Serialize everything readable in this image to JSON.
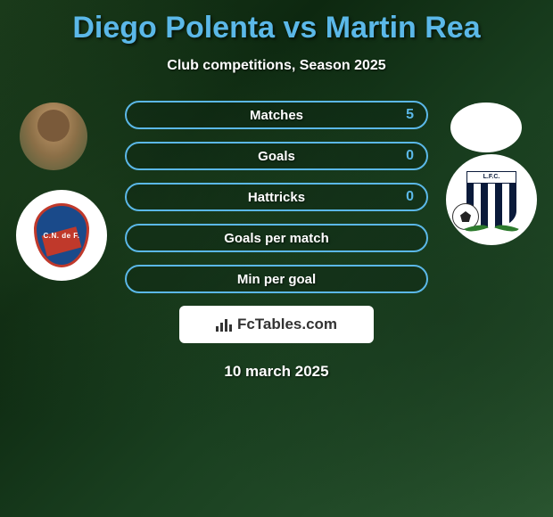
{
  "title": "Diego Polenta vs Martin Rea",
  "subtitle": "Club competitions, Season 2025",
  "date": "10 march 2025",
  "fctables_label": "FcTables.com",
  "club_left_text": "C.N. de F.",
  "club_right_text": "L.F.C.",
  "stats": [
    {
      "label": "Matches",
      "value_right": "5"
    },
    {
      "label": "Goals",
      "value_right": "0"
    },
    {
      "label": "Hattricks",
      "value_right": "0"
    },
    {
      "label": "Goals per match",
      "value_right": ""
    },
    {
      "label": "Min per goal",
      "value_right": ""
    }
  ],
  "styling": {
    "title_color": "#5bb8e8",
    "text_color": "#ffffff",
    "value_color": "#5bb8e8",
    "pill_border_color": "#5bb8e8",
    "background_base": "#1a3a1a",
    "fctables_bg": "#ffffff",
    "fctables_text_color": "#333333",
    "title_fontsize": 34,
    "subtitle_fontsize": 16,
    "stat_label_fontsize": 15,
    "stat_row_height": 32,
    "stat_row_gap": 14,
    "pill_border_radius": 16,
    "pill_width": 340,
    "avatar_diameter": 76,
    "badge_diameter": 102,
    "club_left_colors": {
      "shield": "#1a4a8a",
      "border": "#c0392b",
      "stripe": "#c0392b"
    },
    "club_right_colors": {
      "stripe_dark": "#0a1a3a",
      "stripe_light": "#ffffff",
      "leaves": "#2d7a2d"
    }
  }
}
